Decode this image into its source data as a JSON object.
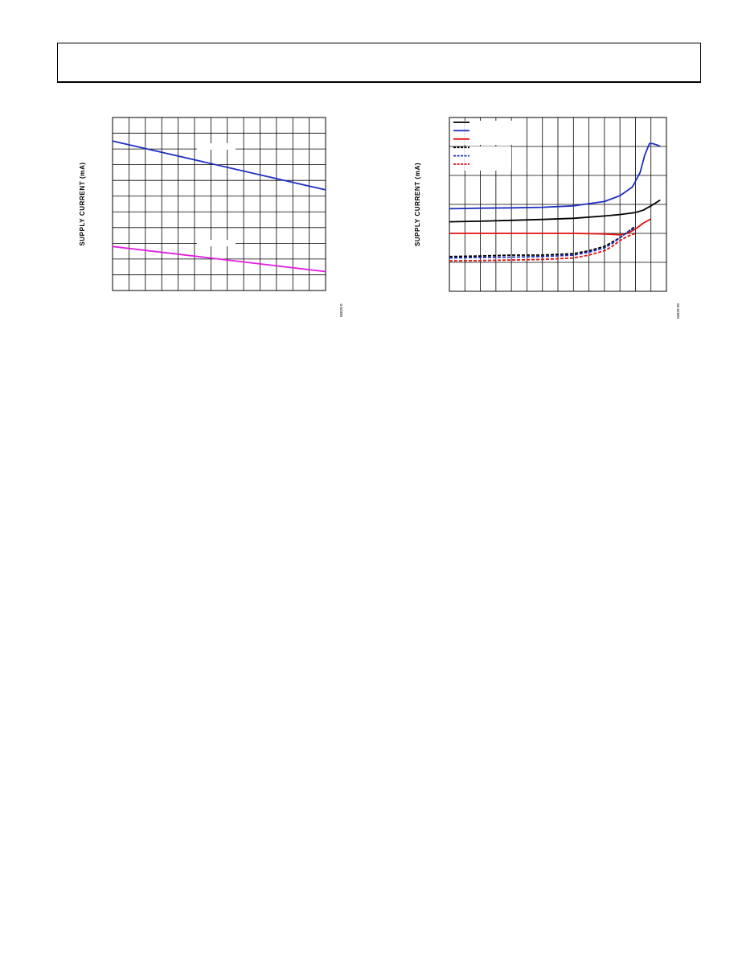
{
  "page": {
    "header_text": ""
  },
  "chart_data": [
    {
      "type": "line",
      "title": "",
      "xlabel": "",
      "ylabel": "SUPPLY CURRENT (mA)",
      "figure_id": "06829-0",
      "grid": true,
      "xlim": [
        0,
        13
      ],
      "ylim": [
        0,
        11
      ],
      "series": [
        {
          "color": "#1f2fbf",
          "x": [
            0,
            13
          ],
          "y": [
            9.5,
            6.4
          ]
        },
        {
          "color": "#e020e0",
          "x": [
            0,
            13
          ],
          "y": [
            2.8,
            1.2
          ]
        }
      ]
    },
    {
      "type": "line",
      "title": "",
      "xlabel": "",
      "ylabel": "SUPPLY CURRENT (mA)",
      "figure_id": "06829-00",
      "grid": true,
      "xlim": [
        0,
        14
      ],
      "ylim": [
        0,
        6
      ],
      "legend": "top-left",
      "series": [
        {
          "color": "#000000",
          "dash": false,
          "x": [
            0,
            2,
            4,
            6,
            8,
            10,
            11,
            12,
            12.5,
            13,
            13.6
          ],
          "y": [
            2.4,
            2.42,
            2.45,
            2.48,
            2.52,
            2.6,
            2.65,
            2.72,
            2.8,
            2.95,
            3.15
          ]
        },
        {
          "color": "#1f2fbf",
          "dash": false,
          "x": [
            0,
            2,
            4,
            6,
            8,
            10,
            11,
            11.8,
            12.3,
            12.6,
            12.9,
            13.1,
            13.4,
            13.6
          ],
          "y": [
            2.85,
            2.87,
            2.88,
            2.9,
            2.95,
            3.1,
            3.3,
            3.6,
            4.1,
            4.7,
            5.1,
            5.1,
            5.05,
            5.0
          ]
        },
        {
          "color": "#e01010",
          "dash": false,
          "x": [
            0,
            2,
            4,
            6,
            8,
            10,
            11,
            11.5,
            12,
            12.5,
            13
          ],
          "y": [
            2.0,
            2.0,
            2.0,
            2.0,
            2.0,
            1.98,
            1.95,
            2.0,
            2.15,
            2.35,
            2.5
          ]
        },
        {
          "color": "#000000",
          "dash": true,
          "x": [
            0,
            2,
            4,
            6,
            8,
            9,
            10,
            10.5,
            11,
            11.5,
            12
          ],
          "y": [
            1.2,
            1.22,
            1.25,
            1.25,
            1.3,
            1.4,
            1.55,
            1.7,
            1.85,
            2.05,
            2.25
          ]
        },
        {
          "color": "#1f2fbf",
          "dash": true,
          "x": [
            0,
            2,
            4,
            6,
            8,
            9,
            10,
            10.5,
            11,
            11.5,
            12
          ],
          "y": [
            1.15,
            1.17,
            1.18,
            1.2,
            1.25,
            1.35,
            1.5,
            1.65,
            1.85,
            2.05,
            2.2
          ]
        },
        {
          "color": "#e01010",
          "dash": true,
          "x": [
            0,
            2,
            4,
            6,
            8,
            9,
            10,
            10.5,
            11,
            11.5,
            12
          ],
          "y": [
            1.05,
            1.06,
            1.08,
            1.1,
            1.15,
            1.25,
            1.4,
            1.55,
            1.75,
            1.9,
            2.0
          ]
        }
      ]
    }
  ]
}
